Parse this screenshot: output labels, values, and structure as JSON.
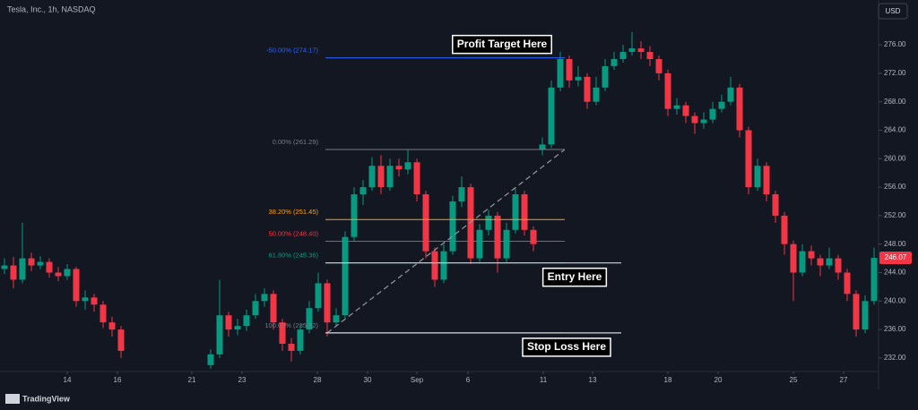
{
  "chart_data": {
    "type": "candlestick",
    "title": "Tesla, Inc., 1h, NASDAQ",
    "currency": "USD",
    "brand": "TradingView",
    "up_color": "#089981",
    "down_color": "#f23645",
    "xlim": [
      0,
      98
    ],
    "ylim": [
      230.1,
      282.3
    ],
    "xticks": [
      {
        "value": 7.5,
        "label": "14"
      },
      {
        "value": 13.1,
        "label": "16"
      },
      {
        "value": 21.4,
        "label": "21"
      },
      {
        "value": 27,
        "label": "23"
      },
      {
        "value": 35.4,
        "label": "28"
      },
      {
        "value": 41,
        "label": "30"
      },
      {
        "value": 46.5,
        "label": "Sep"
      },
      {
        "value": 52.2,
        "label": "6"
      },
      {
        "value": 60.6,
        "label": "11"
      },
      {
        "value": 66.1,
        "label": "13"
      },
      {
        "value": 74.5,
        "label": "18"
      },
      {
        "value": 80.1,
        "label": "20"
      },
      {
        "value": 88.5,
        "label": "25"
      },
      {
        "value": 94.1,
        "label": "27"
      }
    ],
    "yticks": [
      {
        "value": 232,
        "label": "232.00"
      },
      {
        "value": 236,
        "label": "236.00"
      },
      {
        "value": 240,
        "label": "240.00"
      },
      {
        "value": 244,
        "label": "244.00"
      },
      {
        "value": 248,
        "label": "248.00"
      },
      {
        "value": 252,
        "label": "252.00"
      },
      {
        "value": 256,
        "label": "256.00"
      },
      {
        "value": 260,
        "label": "260.00"
      },
      {
        "value": 264,
        "label": "264.00"
      },
      {
        "value": 268,
        "label": "268.00"
      },
      {
        "value": 272,
        "label": "272.00"
      },
      {
        "value": 276,
        "label": "276.00"
      }
    ],
    "fib_levels": [
      {
        "label": "-50.00% (274.17)",
        "value": 274.17,
        "color": "#2962ff"
      },
      {
        "label": "0.00% (261.29)",
        "value": 261.29,
        "color": "#787b86"
      },
      {
        "label": "38.20% (251.45)",
        "value": 251.45,
        "color": "#f7a21b"
      },
      {
        "label": "50.00% (248.40)",
        "value": 248.4,
        "color": "#f23645"
      },
      {
        "label": "61.80% (245.36)",
        "value": 245.36,
        "color": "#089981"
      },
      {
        "label": "100.00% (235.52)",
        "value": 235.52,
        "color": "#787b86"
      }
    ],
    "annotations": [
      "Profit Target Here",
      "Entry Here",
      "Stop Loss Here"
    ],
    "candles": [
      {
        "x": 0.5,
        "o": 244.5,
        "h": 246,
        "l": 243.8,
        "c": 245
      },
      {
        "x": 1.5,
        "o": 245,
        "h": 246.2,
        "l": 241.8,
        "c": 243
      },
      {
        "x": 2.5,
        "o": 243,
        "h": 251,
        "l": 242.5,
        "c": 246
      },
      {
        "x": 3.5,
        "o": 246,
        "h": 246.8,
        "l": 244.2,
        "c": 245
      },
      {
        "x": 4.5,
        "o": 245,
        "h": 246.3,
        "l": 244.5,
        "c": 245.5
      },
      {
        "x": 5.5,
        "o": 245.5,
        "h": 246,
        "l": 243.3,
        "c": 244
      },
      {
        "x": 6.5,
        "o": 244,
        "h": 244.8,
        "l": 242.8,
        "c": 243.5
      },
      {
        "x": 7.5,
        "o": 243.5,
        "h": 245.2,
        "l": 243,
        "c": 244.5
      },
      {
        "x": 8.5,
        "o": 244.5,
        "h": 244.8,
        "l": 239.2,
        "c": 240
      },
      {
        "x": 9.5,
        "o": 240,
        "h": 241.5,
        "l": 238.8,
        "c": 240.5
      },
      {
        "x": 10.5,
        "o": 240.5,
        "h": 241,
        "l": 238.5,
        "c": 239.5
      },
      {
        "x": 11.5,
        "o": 239.5,
        "h": 240,
        "l": 236.2,
        "c": 237
      },
      {
        "x": 12.5,
        "o": 237,
        "h": 237.8,
        "l": 235,
        "c": 236
      },
      {
        "x": 13.5,
        "o": 236,
        "h": 236.5,
        "l": 232,
        "c": 233
      },
      {
        "x": 23.5,
        "o": 231,
        "h": 233.2,
        "l": 230.5,
        "c": 232.5
      },
      {
        "x": 24.5,
        "o": 232.5,
        "h": 243,
        "l": 232,
        "c": 238
      },
      {
        "x": 25.5,
        "o": 238,
        "h": 238.5,
        "l": 235,
        "c": 236
      },
      {
        "x": 26.5,
        "o": 236,
        "h": 237.5,
        "l": 235.2,
        "c": 236.5
      },
      {
        "x": 27.5,
        "o": 236.5,
        "h": 238.8,
        "l": 235.8,
        "c": 238
      },
      {
        "x": 28.5,
        "o": 238,
        "h": 241,
        "l": 237.5,
        "c": 240
      },
      {
        "x": 29.5,
        "o": 240,
        "h": 241.8,
        "l": 239.2,
        "c": 241
      },
      {
        "x": 30.5,
        "o": 241,
        "h": 241.5,
        "l": 236,
        "c": 237
      },
      {
        "x": 31.5,
        "o": 237,
        "h": 237.5,
        "l": 233,
        "c": 234
      },
      {
        "x": 32.5,
        "o": 234,
        "h": 234.8,
        "l": 231.5,
        "c": 233
      },
      {
        "x": 33.5,
        "o": 233,
        "h": 236.8,
        "l": 232.5,
        "c": 236
      },
      {
        "x": 34.5,
        "o": 236,
        "h": 240,
        "l": 235.5,
        "c": 239
      },
      {
        "x": 35.5,
        "o": 239,
        "h": 244,
        "l": 238.5,
        "c": 242.5
      },
      {
        "x": 36.5,
        "o": 242.5,
        "h": 243,
        "l": 235,
        "c": 237
      },
      {
        "x": 37.5,
        "o": 237,
        "h": 239,
        "l": 236.5,
        "c": 238
      },
      {
        "x": 38.5,
        "o": 238,
        "h": 249.8,
        "l": 237.5,
        "c": 249
      },
      {
        "x": 39.5,
        "o": 249,
        "h": 256,
        "l": 248.5,
        "c": 255
      },
      {
        "x": 40.5,
        "o": 255,
        "h": 257,
        "l": 253.5,
        "c": 256
      },
      {
        "x": 41.5,
        "o": 256,
        "h": 260.2,
        "l": 255.5,
        "c": 259
      },
      {
        "x": 42.5,
        "o": 259,
        "h": 260.5,
        "l": 255,
        "c": 256
      },
      {
        "x": 43.5,
        "o": 256,
        "h": 260,
        "l": 255.5,
        "c": 259
      },
      {
        "x": 44.5,
        "o": 259,
        "h": 260,
        "l": 257.5,
        "c": 258.5
      },
      {
        "x": 45.5,
        "o": 258.5,
        "h": 261.3,
        "l": 257.8,
        "c": 259.5
      },
      {
        "x": 46.5,
        "o": 259.5,
        "h": 260,
        "l": 254,
        "c": 255
      },
      {
        "x": 47.5,
        "o": 255,
        "h": 255.5,
        "l": 246,
        "c": 247
      },
      {
        "x": 48.5,
        "o": 247,
        "h": 247.5,
        "l": 242,
        "c": 243
      },
      {
        "x": 49.5,
        "o": 243,
        "h": 248,
        "l": 242.5,
        "c": 247
      },
      {
        "x": 50.5,
        "o": 247,
        "h": 254.8,
        "l": 246.5,
        "c": 254
      },
      {
        "x": 51.5,
        "o": 254,
        "h": 257.5,
        "l": 253.2,
        "c": 256
      },
      {
        "x": 52.5,
        "o": 256,
        "h": 256.5,
        "l": 245.2,
        "c": 246
      },
      {
        "x": 53.5,
        "o": 246,
        "h": 250.8,
        "l": 245.5,
        "c": 250
      },
      {
        "x": 54.5,
        "o": 250,
        "h": 252.8,
        "l": 249.2,
        "c": 252
      },
      {
        "x": 55.5,
        "o": 252,
        "h": 252.5,
        "l": 244,
        "c": 246
      },
      {
        "x": 56.5,
        "o": 246,
        "h": 251,
        "l": 245.5,
        "c": 250
      },
      {
        "x": 57.5,
        "o": 250,
        "h": 255.8,
        "l": 249.5,
        "c": 255
      },
      {
        "x": 58.5,
        "o": 255,
        "h": 255.5,
        "l": 249.2,
        "c": 250
      },
      {
        "x": 59.5,
        "o": 250,
        "h": 250.5,
        "l": 247,
        "c": 248
      },
      {
        "x": 60.5,
        "o": 261.3,
        "h": 263,
        "l": 260.5,
        "c": 262
      },
      {
        "x": 61.5,
        "o": 262,
        "h": 271,
        "l": 261.5,
        "c": 270
      },
      {
        "x": 62.5,
        "o": 270,
        "h": 275,
        "l": 269.5,
        "c": 274
      },
      {
        "x": 63.5,
        "o": 274,
        "h": 274.5,
        "l": 270,
        "c": 271
      },
      {
        "x": 64.5,
        "o": 271,
        "h": 273,
        "l": 270.2,
        "c": 271.5
      },
      {
        "x": 65.5,
        "o": 271.5,
        "h": 272,
        "l": 267,
        "c": 268
      },
      {
        "x": 66.5,
        "o": 268,
        "h": 271.5,
        "l": 267.5,
        "c": 270
      },
      {
        "x": 67.5,
        "o": 270,
        "h": 274,
        "l": 269.5,
        "c": 273
      },
      {
        "x": 68.5,
        "o": 273,
        "h": 275,
        "l": 272.5,
        "c": 274
      },
      {
        "x": 69.5,
        "o": 274,
        "h": 276,
        "l": 273.5,
        "c": 275
      },
      {
        "x": 70.5,
        "o": 275,
        "h": 277.8,
        "l": 274.5,
        "c": 275.5
      },
      {
        "x": 71.5,
        "o": 275.5,
        "h": 276.5,
        "l": 274,
        "c": 275
      },
      {
        "x": 72.5,
        "o": 275,
        "h": 275.8,
        "l": 273,
        "c": 274
      },
      {
        "x": 73.5,
        "o": 274,
        "h": 274.5,
        "l": 271,
        "c": 272
      },
      {
        "x": 74.5,
        "o": 272,
        "h": 272.5,
        "l": 266,
        "c": 267
      },
      {
        "x": 75.5,
        "o": 267,
        "h": 268.5,
        "l": 266.2,
        "c": 267.5
      },
      {
        "x": 76.5,
        "o": 267.5,
        "h": 268,
        "l": 265,
        "c": 266
      },
      {
        "x": 77.5,
        "o": 266,
        "h": 266.5,
        "l": 263.5,
        "c": 265
      },
      {
        "x": 78.5,
        "o": 265,
        "h": 266.5,
        "l": 264.2,
        "c": 265.5
      },
      {
        "x": 79.5,
        "o": 265.5,
        "h": 268,
        "l": 265,
        "c": 267
      },
      {
        "x": 80.5,
        "o": 267,
        "h": 269,
        "l": 266.5,
        "c": 268
      },
      {
        "x": 81.5,
        "o": 268,
        "h": 271.5,
        "l": 267.5,
        "c": 270
      },
      {
        "x": 82.5,
        "o": 270,
        "h": 270.5,
        "l": 263,
        "c": 264
      },
      {
        "x": 83.5,
        "o": 264,
        "h": 264.5,
        "l": 255,
        "c": 256
      },
      {
        "x": 84.5,
        "o": 256,
        "h": 260,
        "l": 255.5,
        "c": 259
      },
      {
        "x": 85.5,
        "o": 259,
        "h": 259.5,
        "l": 254,
        "c": 255
      },
      {
        "x": 86.5,
        "o": 255,
        "h": 255.5,
        "l": 251,
        "c": 252
      },
      {
        "x": 87.5,
        "o": 252,
        "h": 252.5,
        "l": 246.5,
        "c": 248
      },
      {
        "x": 88.5,
        "o": 248,
        "h": 248.5,
        "l": 240,
        "c": 244
      },
      {
        "x": 89.5,
        "o": 244,
        "h": 248,
        "l": 243.5,
        "c": 247
      },
      {
        "x": 90.5,
        "o": 247,
        "h": 247.8,
        "l": 245,
        "c": 246
      },
      {
        "x": 91.5,
        "o": 246,
        "h": 246.5,
        "l": 243.5,
        "c": 245
      },
      {
        "x": 92.5,
        "o": 245,
        "h": 247.5,
        "l": 244.5,
        "c": 246
      },
      {
        "x": 93.5,
        "o": 246,
        "h": 246.5,
        "l": 243,
        "c": 244
      },
      {
        "x": 94.5,
        "o": 244,
        "h": 244.5,
        "l": 240,
        "c": 241
      },
      {
        "x": 95.5,
        "o": 241,
        "h": 241.5,
        "l": 235,
        "c": 236
      },
      {
        "x": 96.5,
        "o": 236,
        "h": 240.8,
        "l": 235.5,
        "c": 240
      },
      {
        "x": 97.5,
        "o": 240,
        "h": 247.5,
        "l": 239.5,
        "c": 246.07
      }
    ]
  }
}
